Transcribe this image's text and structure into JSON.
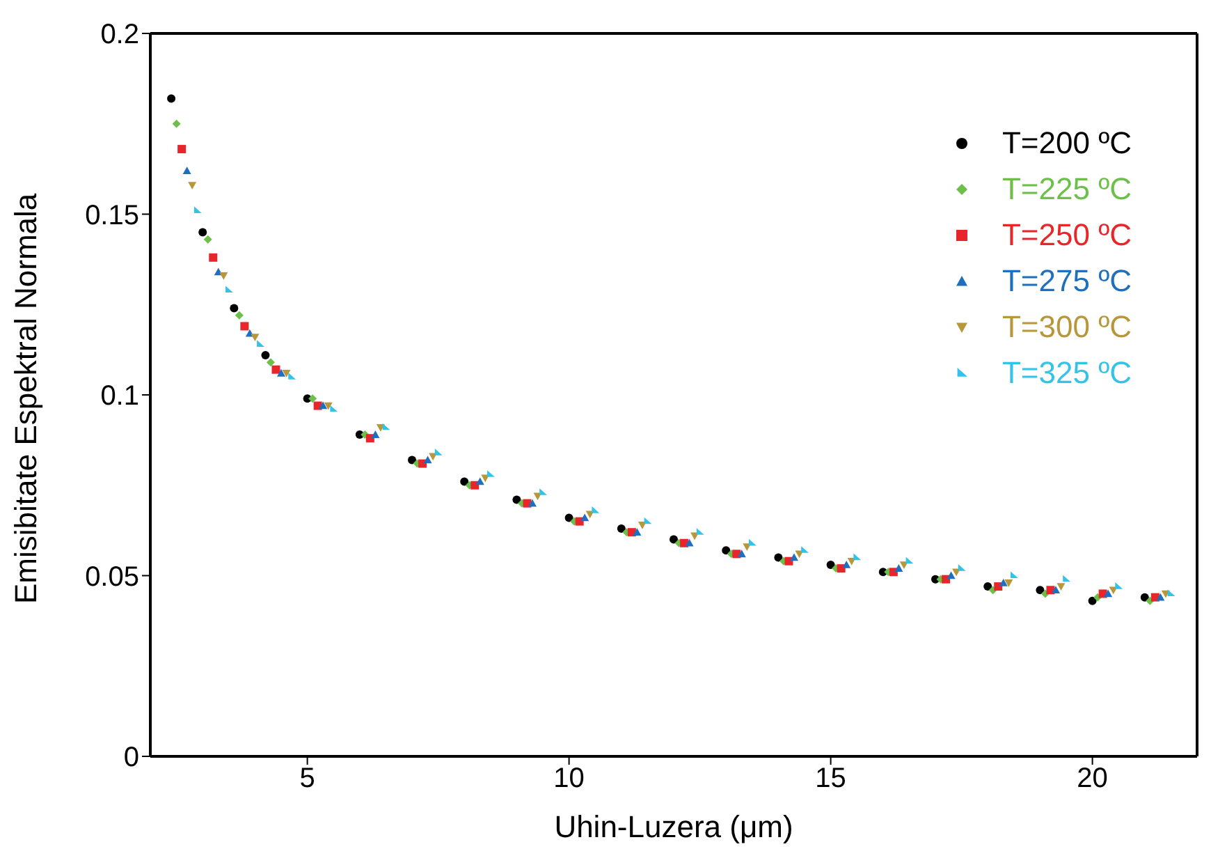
{
  "chart_data": {
    "type": "scatter",
    "xlabel": "Uhin-Luzera (μm)",
    "ylabel": "Emisibitate Espektral Normala",
    "xlim": [
      2,
      22
    ],
    "xticks": [
      5,
      10,
      15,
      20
    ],
    "ylim": [
      0,
      0.2
    ],
    "yticks": [
      0,
      0.05,
      0.1,
      0.15,
      0.2
    ],
    "legend": "top right",
    "series": [
      {
        "name": "T=200 ºC",
        "color": "#000000",
        "marker": "circle",
        "x": [
          2.4,
          3.0,
          3.6,
          4.2,
          5,
          6,
          7,
          8,
          9,
          10,
          11,
          12,
          13,
          14,
          15,
          16,
          17,
          18,
          19,
          20,
          21
        ],
        "values": [
          0.182,
          0.145,
          0.124,
          0.111,
          0.099,
          0.089,
          0.082,
          0.076,
          0.071,
          0.066,
          0.063,
          0.06,
          0.057,
          0.055,
          0.053,
          0.051,
          0.049,
          0.047,
          0.046,
          0.043,
          0.044
        ]
      },
      {
        "name": "T=225 ºC",
        "color": "#6cc04a",
        "marker": "diamond",
        "x": [
          2.5,
          3.1,
          3.7,
          4.3,
          5.1,
          6.1,
          7.1,
          8.1,
          9.1,
          10.1,
          11.1,
          12.1,
          13.1,
          14.1,
          15.1,
          16.1,
          17.1,
          18.1,
          19.1,
          20.1,
          21.1
        ],
        "values": [
          0.175,
          0.143,
          0.122,
          0.109,
          0.099,
          0.089,
          0.081,
          0.075,
          0.07,
          0.065,
          0.062,
          0.059,
          0.056,
          0.054,
          0.052,
          0.051,
          0.049,
          0.046,
          0.045,
          0.044,
          0.043
        ]
      },
      {
        "name": "T=250 ºC",
        "color": "#e8262a",
        "marker": "square",
        "x": [
          2.6,
          3.2,
          3.8,
          4.4,
          5.2,
          6.2,
          7.2,
          8.2,
          9.2,
          10.2,
          11.2,
          12.2,
          13.2,
          14.2,
          15.2,
          16.2,
          17.2,
          18.2,
          19.2,
          20.2,
          21.2
        ],
        "values": [
          0.168,
          0.138,
          0.119,
          0.107,
          0.097,
          0.088,
          0.081,
          0.075,
          0.07,
          0.065,
          0.062,
          0.059,
          0.056,
          0.054,
          0.052,
          0.051,
          0.049,
          0.047,
          0.046,
          0.045,
          0.044
        ]
      },
      {
        "name": "T=275 ºC",
        "color": "#1e6fbf",
        "marker": "triangle",
        "x": [
          2.7,
          3.3,
          3.9,
          4.5,
          5.3,
          6.3,
          7.3,
          8.3,
          9.3,
          10.3,
          11.3,
          12.3,
          13.3,
          14.3,
          15.3,
          16.3,
          17.3,
          18.3,
          19.3,
          20.3,
          21.3
        ],
        "values": [
          0.162,
          0.134,
          0.117,
          0.106,
          0.097,
          0.089,
          0.082,
          0.076,
          0.07,
          0.066,
          0.062,
          0.059,
          0.056,
          0.055,
          0.053,
          0.052,
          0.05,
          0.048,
          0.046,
          0.045,
          0.044
        ]
      },
      {
        "name": "T=300 ºC",
        "color": "#b8963a",
        "marker": "triangle-down",
        "x": [
          2.8,
          3.4,
          4.0,
          4.6,
          5.4,
          6.4,
          7.4,
          8.4,
          9.4,
          10.4,
          11.4,
          12.4,
          13.4,
          14.4,
          15.4,
          16.4,
          17.4,
          18.4,
          19.4,
          20.4,
          21.4
        ],
        "values": [
          0.158,
          0.133,
          0.116,
          0.106,
          0.097,
          0.091,
          0.083,
          0.077,
          0.072,
          0.067,
          0.064,
          0.061,
          0.058,
          0.056,
          0.054,
          0.053,
          0.051,
          0.048,
          0.047,
          0.046,
          0.045
        ]
      },
      {
        "name": "T=325 ºC",
        "color": "#33c3e8",
        "marker": "triangle-right",
        "x": [
          2.9,
          3.5,
          4.1,
          4.7,
          5.5,
          6.5,
          7.5,
          8.5,
          9.5,
          10.5,
          11.5,
          12.5,
          13.5,
          14.5,
          15.5,
          16.5,
          17.5,
          18.5,
          19.5,
          20.5,
          21.5
        ],
        "values": [
          0.151,
          0.129,
          0.114,
          0.105,
          0.096,
          0.091,
          0.084,
          0.078,
          0.073,
          0.068,
          0.065,
          0.062,
          0.059,
          0.057,
          0.055,
          0.054,
          0.052,
          0.05,
          0.049,
          0.047,
          0.045
        ]
      }
    ]
  }
}
